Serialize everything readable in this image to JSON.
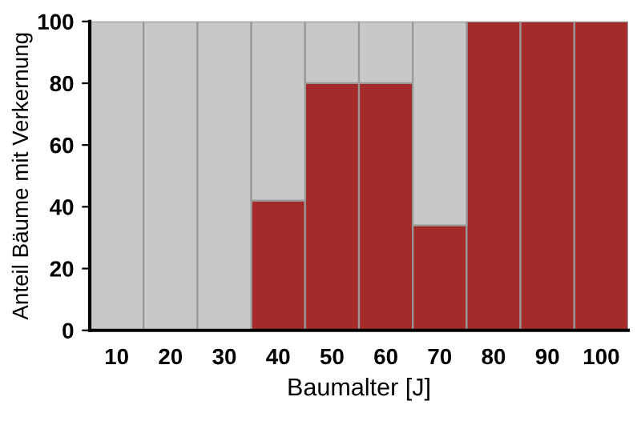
{
  "chart_data": {
    "type": "bar",
    "stacked": true,
    "xlabel": "Baumalter [J]",
    "ylabel": "Anteil Bäume mit Verkernung",
    "categories": [
      "10",
      "20",
      "30",
      "40",
      "50",
      "60",
      "70",
      "80",
      "90",
      "100"
    ],
    "series": [
      {
        "color": "#a52a2a",
        "values": [
          0,
          0,
          0,
          42,
          80,
          80,
          34,
          100,
          100,
          100
        ]
      },
      {
        "color": "#c8c8c8",
        "values": [
          100,
          100,
          100,
          58,
          20,
          20,
          66,
          0,
          0,
          0
        ]
      }
    ],
    "ylim": [
      0,
      100
    ],
    "yticks": [
      0,
      20,
      40,
      60,
      80,
      100
    ],
    "grid": false,
    "legend": false
  }
}
